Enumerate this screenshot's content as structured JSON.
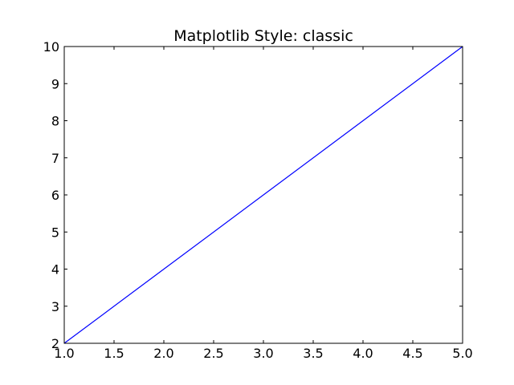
{
  "chart_data": {
    "type": "line",
    "title": "Matplotlib Style: classic",
    "xlabel": "",
    "ylabel": "",
    "xlim": [
      1.0,
      5.0
    ],
    "ylim": [
      2,
      10
    ],
    "xticks": [
      "1.0",
      "1.5",
      "2.0",
      "2.5",
      "3.0",
      "3.5",
      "4.0",
      "4.5",
      "5.0"
    ],
    "yticks": [
      "2",
      "3",
      "4",
      "5",
      "6",
      "7",
      "8",
      "9",
      "10"
    ],
    "grid": false,
    "series": [
      {
        "x": [
          1,
          2,
          3,
          4,
          5
        ],
        "y": [
          2,
          4,
          6,
          8,
          10
        ],
        "color": "#0000ff"
      }
    ]
  }
}
